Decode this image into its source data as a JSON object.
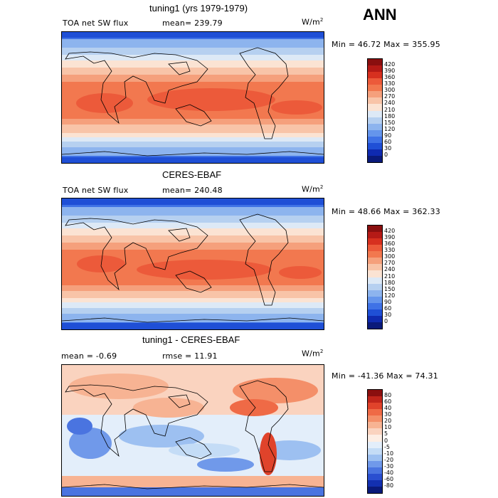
{
  "season": "ANN",
  "chart_data": [
    {
      "type": "heatmap",
      "title": "tuning1 (yrs 1979-1979)",
      "variable": "TOA net SW flux",
      "stat_left": "mean= 239.79",
      "units": "W/m",
      "units_exp": "2",
      "minmax": "Min =  46.72 Max =  355.95",
      "min": 46.72,
      "max": 355.95,
      "colorbar_labels": [
        "420",
        "390",
        "360",
        "330",
        "300",
        "270",
        "240",
        "210",
        "180",
        "150",
        "120",
        "90",
        "60",
        "30",
        "0"
      ],
      "colors": [
        "#8a0f0f",
        "#b51a16",
        "#d7301f",
        "#ec5a3a",
        "#f2784f",
        "#f5a07c",
        "#f8c4a8",
        "#fbe3d3",
        "#dde9f6",
        "#b6d0f0",
        "#8db4ee",
        "#6595ec",
        "#3f72e6",
        "#1f4fd6",
        "#0f2ab0",
        "#0a1a7a"
      ],
      "grid": "off"
    },
    {
      "type": "heatmap",
      "title": "CERES-EBAF",
      "variable": "TOA net SW flux",
      "stat_left": "mean= 240.48",
      "units": "W/m",
      "units_exp": "2",
      "minmax": "Min =  48.66 Max =  362.33",
      "min": 48.66,
      "max": 362.33,
      "colorbar_labels": [
        "420",
        "390",
        "360",
        "330",
        "300",
        "270",
        "240",
        "210",
        "180",
        "150",
        "120",
        "90",
        "60",
        "30",
        "0"
      ],
      "colors": [
        "#8a0f0f",
        "#b51a16",
        "#d7301f",
        "#ec5a3a",
        "#f2784f",
        "#f5a07c",
        "#f8c4a8",
        "#fbe3d3",
        "#dde9f6",
        "#b6d0f0",
        "#8db4ee",
        "#6595ec",
        "#3f72e6",
        "#1f4fd6",
        "#0f2ab0",
        "#0a1a7a"
      ],
      "grid": "off"
    },
    {
      "type": "heatmap",
      "title": "tuning1 - CERES-EBAF",
      "stat_left": "mean =   -0.69",
      "stat_mid": "rmse =   11.91",
      "units": "W/m",
      "units_exp": "2",
      "minmax": "Min = -41.36 Max =   74.31",
      "min": -41.36,
      "max": 74.31,
      "colorbar_labels": [
        "80",
        "60",
        "40",
        "30",
        "20",
        "10",
        "5",
        "0",
        "-5",
        "-10",
        "-20",
        "-30",
        "-40",
        "-60",
        "-80"
      ],
      "colors": [
        "#8a0f0f",
        "#c0251b",
        "#e0432b",
        "#ef6a46",
        "#f48f69",
        "#f7b393",
        "#fad3bf",
        "#fdeee4",
        "#e3eefa",
        "#c4dcf6",
        "#9dc0f1",
        "#7099ea",
        "#4a74e0",
        "#2a4fd0",
        "#1330b0",
        "#0a1a7a"
      ],
      "grid": "off"
    }
  ]
}
